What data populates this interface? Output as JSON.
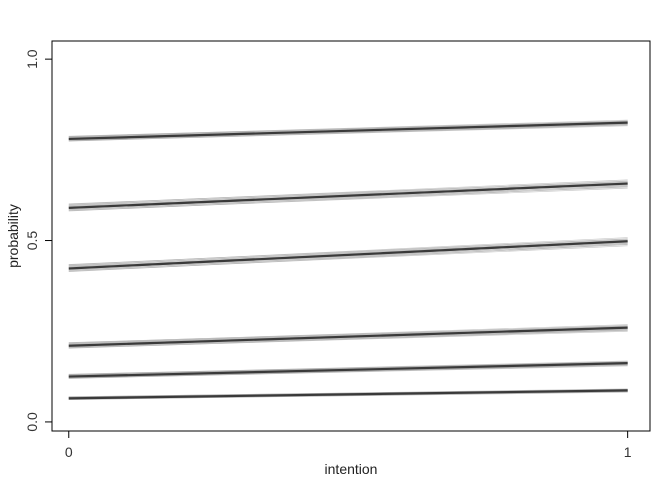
{
  "chart_data": {
    "type": "line",
    "title": "",
    "xlabel": "intention",
    "ylabel": "probability",
    "xlim": [
      -0.03,
      1.04
    ],
    "ylim": [
      -0.025,
      1.05
    ],
    "x_ticks": [
      0,
      1
    ],
    "x_tick_labels": [
      "0",
      "1"
    ],
    "y_ticks": [
      0,
      0.5,
      1
    ],
    "y_tick_labels": [
      "0.0",
      "0.5",
      "1.0"
    ],
    "grid": false,
    "legend": "none",
    "colors": {
      "main_line": "#3a3a3a",
      "band": "#9a9a9a",
      "axis": "#000000"
    },
    "x": [
      0,
      1
    ],
    "series": [
      {
        "values": [
          0.78,
          0.825
        ],
        "band": 0.007
      },
      {
        "values": [
          0.59,
          0.657
        ],
        "band": 0.01
      },
      {
        "values": [
          0.423,
          0.498
        ],
        "band": 0.01
      },
      {
        "values": [
          0.21,
          0.26
        ],
        "band": 0.008
      },
      {
        "values": [
          0.125,
          0.162
        ],
        "band": 0.006
      },
      {
        "values": [
          0.065,
          0.087
        ],
        "band": 0.004
      }
    ]
  }
}
